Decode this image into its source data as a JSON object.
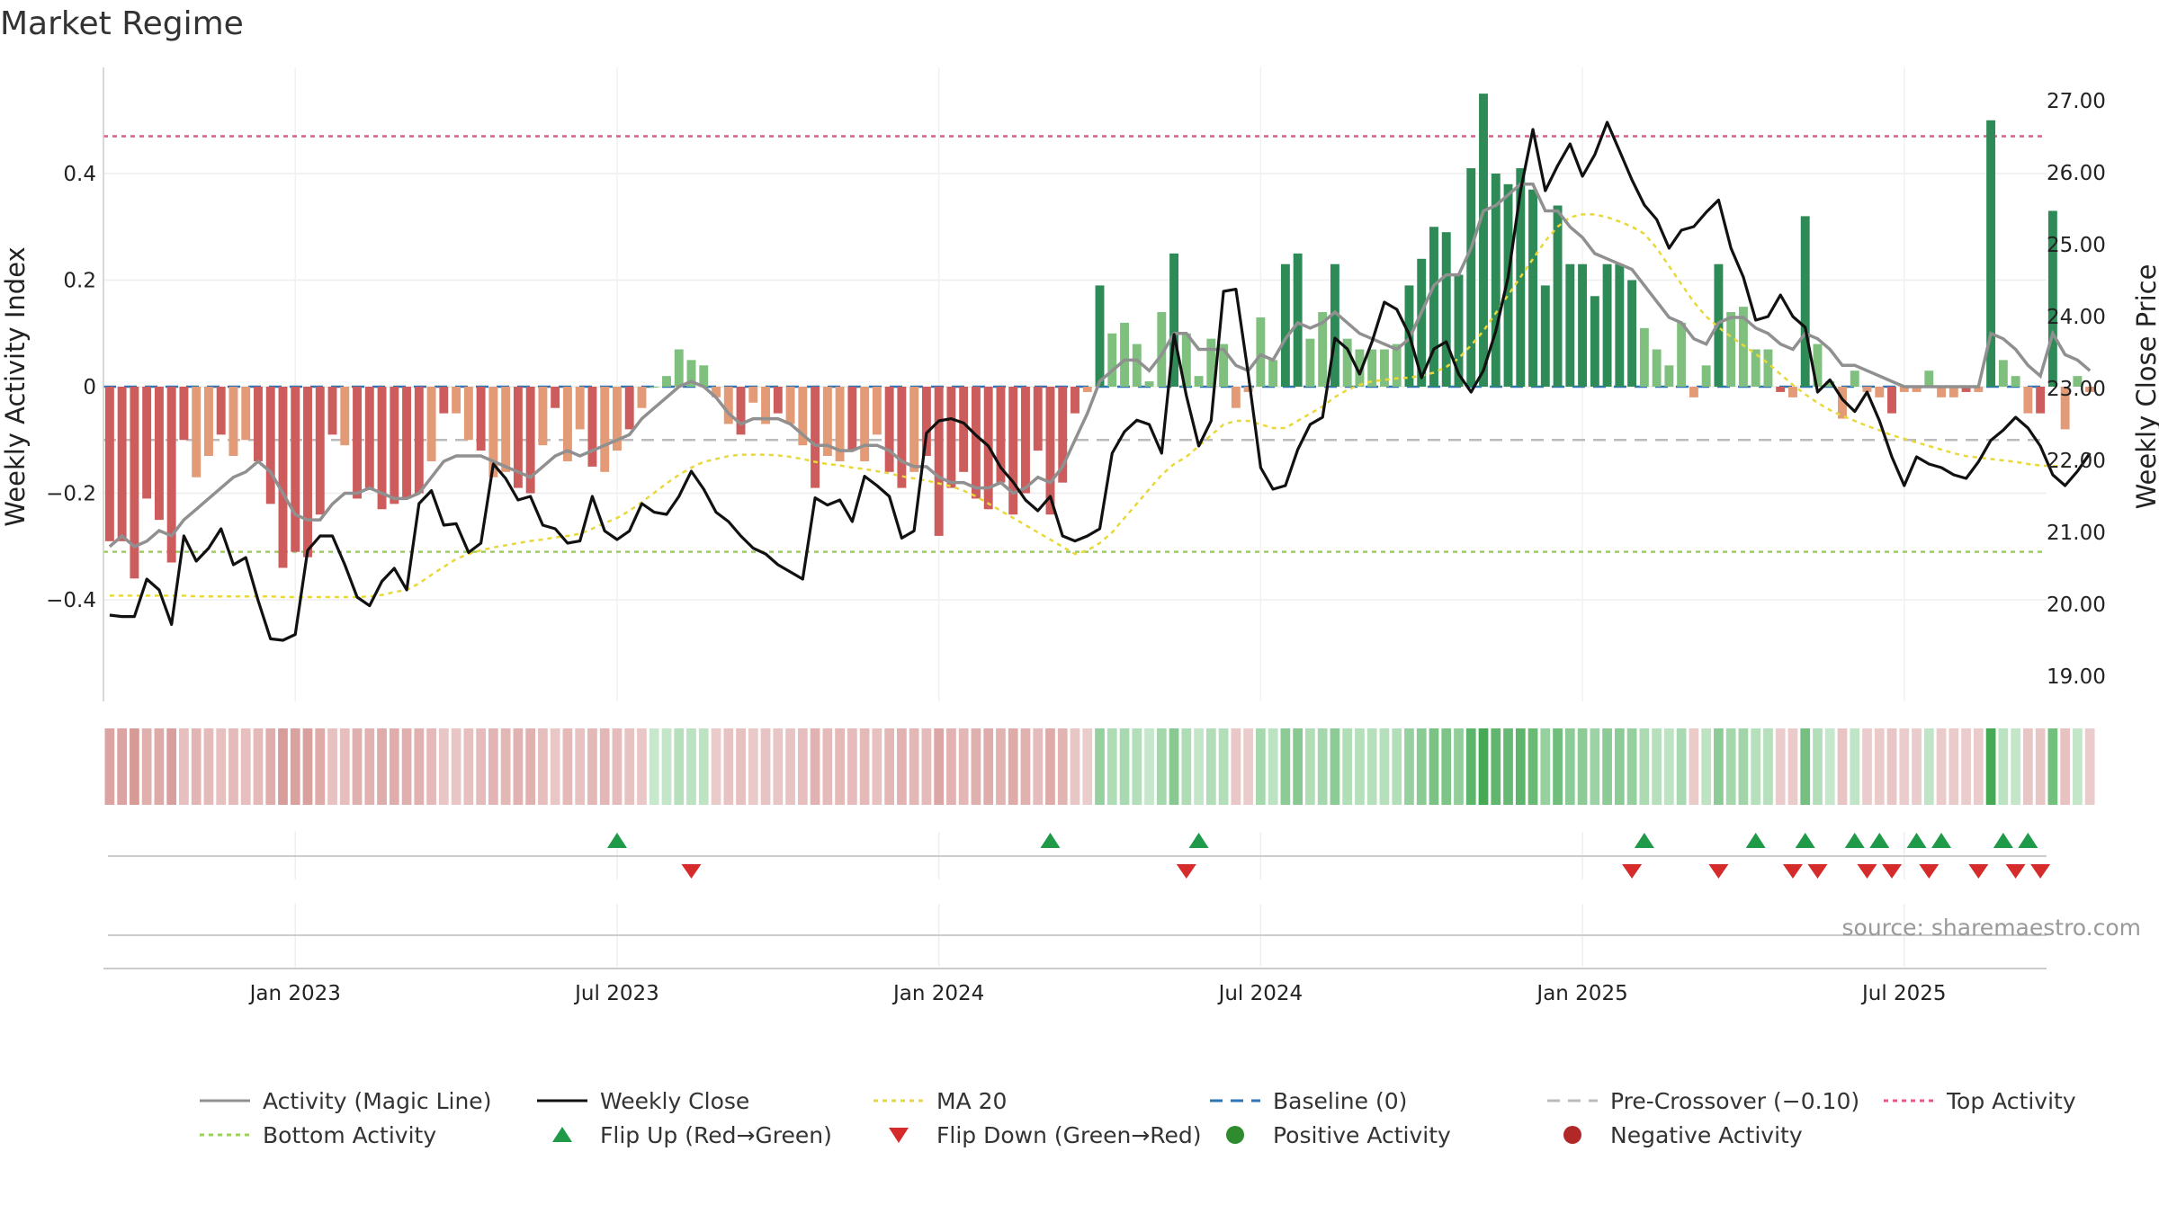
{
  "chart_data": {
    "type": "bar",
    "title": "Market Regime",
    "ylabel_left": "Weekly Activity Index",
    "ylabel_right": "Weekly Close Price",
    "source": "source: sharemaestro.com",
    "y_left_ticks": [
      {
        "value": 0.4,
        "label": "0.4"
      },
      {
        "value": 0.2,
        "label": "0.2"
      },
      {
        "value": 0,
        "label": "0"
      },
      {
        "value": -0.2,
        "label": "−0.2"
      },
      {
        "value": -0.4,
        "label": "−0.4"
      }
    ],
    "y_right_ticks": [
      "27.00",
      "26.00",
      "25.00",
      "24.00",
      "23.00",
      "22.00",
      "21.00",
      "20.00",
      "19.00"
    ],
    "y_left_range": [
      -0.59,
      0.59
    ],
    "y_right_range": [
      18.7,
      27.5
    ],
    "x_tick_labels": [
      {
        "week": 15,
        "label": "Jan 2023"
      },
      {
        "week": 41,
        "label": "Jul 2023"
      },
      {
        "week": 67,
        "label": "Jan 2024"
      },
      {
        "week": 93,
        "label": "Jul 2024"
      },
      {
        "week": 119,
        "label": "Jan 2025"
      },
      {
        "week": 145,
        "label": "Jul 2025"
      }
    ],
    "n_weeks": 157,
    "reference_lines": {
      "top_activity": 0.47,
      "bottom_activity": -0.31,
      "pre_crossover": -0.1,
      "baseline": 0
    },
    "activity_values": [
      -0.29,
      -0.29,
      -0.36,
      -0.21,
      -0.25,
      -0.33,
      -0.1,
      -0.17,
      -0.13,
      -0.09,
      -0.13,
      -0.1,
      -0.14,
      -0.22,
      -0.34,
      -0.31,
      -0.32,
      -0.24,
      -0.09,
      -0.11,
      -0.21,
      -0.19,
      -0.23,
      -0.22,
      -0.21,
      -0.2,
      -0.14,
      -0.05,
      -0.05,
      -0.1,
      -0.12,
      -0.17,
      -0.16,
      -0.19,
      -0.2,
      -0.11,
      -0.04,
      -0.14,
      -0.08,
      -0.15,
      -0.16,
      -0.12,
      -0.08,
      -0.04,
      0,
      0.02,
      0.07,
      0.05,
      0.04,
      -0.02,
      -0.07,
      -0.09,
      -0.03,
      -0.07,
      -0.05,
      -0.07,
      -0.11,
      -0.19,
      -0.13,
      -0.14,
      -0.12,
      -0.14,
      -0.09,
      -0.16,
      -0.19,
      -0.16,
      -0.13,
      -0.28,
      -0.19,
      -0.16,
      -0.21,
      -0.23,
      -0.18,
      -0.24,
      -0.2,
      -0.12,
      -0.24,
      -0.18,
      -0.05,
      -0.01,
      0.19,
      0.1,
      0.12,
      0.08,
      0.01,
      0.14,
      0.25,
      0.1,
      0.02,
      0.09,
      0.08,
      -0.04,
      -0.01,
      0.13,
      0.05,
      0.23,
      0.25,
      0.09,
      0.14,
      0.23,
      0.09,
      0.07,
      0.07,
      0.07,
      0.08,
      0.19,
      0.24,
      0.3,
      0.29,
      0.21,
      0.41,
      0.55,
      0.4,
      0.38,
      0.41,
      0.37,
      0.19,
      0.34,
      0.23,
      0.23,
      0.17,
      0.23,
      0.23,
      0.2,
      0.11,
      0.07,
      0.04,
      0.12,
      -0.02,
      0.04,
      0.23,
      0.14,
      0.15,
      0.07,
      0.07,
      -0.01,
      -0.02,
      0.32,
      0.08,
      0.01,
      -0.06,
      0.03,
      -0.01,
      -0.02,
      -0.05,
      -0.01,
      -0.01,
      0.03,
      -0.02,
      -0.02,
      -0.01,
      -0.01,
      0.5,
      0.05,
      0.02,
      -0.05,
      -0.05,
      0.33,
      -0.08,
      0.02,
      -0.01
    ],
    "weekly_close": [
      19.85,
      19.83,
      19.83,
      20.35,
      20.2,
      19.72,
      20.95,
      20.6,
      20.78,
      21.05,
      20.55,
      20.65,
      20.05,
      19.52,
      19.5,
      19.58,
      20.75,
      20.95,
      20.95,
      20.55,
      20.1,
      19.98,
      20.32,
      20.5,
      20.2,
      21.4,
      21.58,
      21.1,
      21.12,
      20.72,
      20.85,
      21.95,
      21.75,
      21.45,
      21.5,
      21.1,
      21.05,
      20.85,
      20.88,
      21.5,
      21.02,
      20.9,
      21.02,
      21.4,
      21.28,
      21.25,
      21.5,
      21.85,
      21.6,
      21.28,
      21.15,
      20.95,
      20.78,
      20.7,
      20.55,
      20.45,
      20.35,
      21.48,
      21.38,
      21.45,
      21.15,
      21.78,
      21.65,
      21.5,
      20.92,
      21.02,
      22.38,
      22.55,
      22.58,
      22.52,
      22.35,
      22.2,
      21.9,
      21.7,
      21.45,
      21.3,
      21.5,
      20.95,
      20.88,
      20.95,
      21.05,
      22.1,
      22.4,
      22.56,
      22.5,
      22.1,
      23.75,
      22.9,
      22.2,
      22.55,
      24.35,
      24.38,
      23.2,
      21.9,
      21.6,
      21.65,
      22.15,
      22.5,
      22.6,
      23.7,
      23.55,
      23.2,
      23.65,
      24.2,
      24.1,
      23.75,
      23.15,
      23.55,
      23.65,
      23.2,
      22.95,
      23.25,
      23.8,
      24.55,
      25.75,
      26.6,
      25.75,
      26.1,
      26.4,
      25.95,
      26.25,
      26.7,
      26.3,
      25.9,
      25.55,
      25.35,
      24.95,
      25.2,
      25.25,
      25.45,
      25.62,
      24.95,
      24.55,
      23.95,
      24.0,
      24.3,
      24.0,
      23.85,
      22.95,
      23.12,
      22.85,
      22.68,
      22.95,
      22.55,
      22.05,
      21.65,
      22.05,
      21.95,
      21.9,
      21.8,
      21.75,
      21.98,
      22.28,
      22.42,
      22.6,
      22.45,
      22.2,
      21.8,
      21.65,
      21.85,
      22.1
    ],
    "magic_line": [
      -0.3,
      -0.28,
      -0.3,
      -0.29,
      -0.27,
      -0.28,
      -0.25,
      -0.23,
      -0.21,
      -0.19,
      -0.17,
      -0.16,
      -0.14,
      -0.16,
      -0.2,
      -0.24,
      -0.25,
      -0.25,
      -0.22,
      -0.2,
      -0.2,
      -0.19,
      -0.2,
      -0.21,
      -0.21,
      -0.2,
      -0.17,
      -0.14,
      -0.13,
      -0.13,
      -0.13,
      -0.14,
      -0.15,
      -0.16,
      -0.17,
      -0.15,
      -0.13,
      -0.12,
      -0.13,
      -0.12,
      -0.11,
      -0.1,
      -0.09,
      -0.06,
      -0.04,
      -0.02,
      0.0,
      0.01,
      0.0,
      -0.02,
      -0.05,
      -0.07,
      -0.06,
      -0.06,
      -0.06,
      -0.07,
      -0.09,
      -0.11,
      -0.11,
      -0.12,
      -0.12,
      -0.11,
      -0.11,
      -0.12,
      -0.14,
      -0.15,
      -0.15,
      -0.17,
      -0.18,
      -0.18,
      -0.19,
      -0.19,
      -0.18,
      -0.2,
      -0.19,
      -0.17,
      -0.18,
      -0.15,
      -0.1,
      -0.05,
      0.01,
      0.03,
      0.05,
      0.05,
      0.03,
      0.06,
      0.1,
      0.1,
      0.07,
      0.07,
      0.07,
      0.04,
      0.03,
      0.06,
      0.05,
      0.09,
      0.12,
      0.11,
      0.12,
      0.14,
      0.12,
      0.1,
      0.09,
      0.08,
      0.07,
      0.09,
      0.14,
      0.19,
      0.21,
      0.21,
      0.26,
      0.33,
      0.34,
      0.36,
      0.38,
      0.38,
      0.33,
      0.33,
      0.3,
      0.28,
      0.25,
      0.24,
      0.23,
      0.22,
      0.19,
      0.16,
      0.13,
      0.12,
      0.09,
      0.08,
      0.12,
      0.13,
      0.13,
      0.11,
      0.1,
      0.08,
      0.07,
      0.1,
      0.09,
      0.07,
      0.04,
      0.04,
      0.03,
      0.02,
      0.01,
      0.0,
      0.0,
      0.0,
      -0.0,
      -0.0,
      0.0,
      0.0,
      0.1,
      0.09,
      0.07,
      0.04,
      0.02,
      0.1,
      0.06,
      0.05,
      0.03
    ],
    "ma20": [
      20.12,
      20.12,
      20.12,
      20.12,
      20.12,
      20.12,
      20.12,
      20.11,
      20.11,
      20.11,
      20.11,
      20.11,
      20.11,
      20.11,
      20.1,
      20.1,
      20.1,
      20.1,
      20.1,
      20.1,
      20.1,
      20.11,
      20.13,
      20.17,
      20.2,
      20.29,
      20.41,
      20.52,
      20.63,
      20.7,
      20.75,
      20.79,
      20.82,
      20.85,
      20.88,
      20.9,
      20.93,
      20.95,
      20.98,
      21.05,
      21.13,
      21.2,
      21.3,
      21.42,
      21.55,
      21.68,
      21.8,
      21.9,
      21.98,
      22.02,
      22.06,
      22.08,
      22.08,
      22.08,
      22.07,
      22.05,
      22.02,
      21.98,
      21.95,
      21.93,
      21.9,
      21.88,
      21.85,
      21.82,
      21.78,
      21.75,
      21.72,
      21.68,
      21.64,
      21.58,
      21.5,
      21.4,
      21.3,
      21.2,
      21.1,
      21.0,
      20.9,
      20.8,
      20.7,
      20.75,
      20.85,
      21.0,
      21.2,
      21.4,
      21.6,
      21.8,
      21.95,
      22.05,
      22.2,
      22.35,
      22.5,
      22.55,
      22.55,
      22.5,
      22.45,
      22.45,
      22.55,
      22.65,
      22.75,
      22.88,
      22.98,
      23.05,
      23.1,
      23.12,
      23.14,
      23.15,
      23.18,
      23.22,
      23.3,
      23.42,
      23.6,
      23.8,
      24.05,
      24.3,
      24.55,
      24.8,
      25.05,
      25.25,
      25.38,
      25.42,
      25.42,
      25.38,
      25.32,
      25.25,
      25.15,
      24.95,
      24.7,
      24.45,
      24.2,
      24.0,
      23.85,
      23.72,
      23.6,
      23.48,
      23.35,
      23.2,
      23.05,
      22.92,
      22.8,
      22.7,
      22.62,
      22.55,
      22.48,
      22.42,
      22.35,
      22.3,
      22.25,
      22.2,
      22.15,
      22.1,
      22.06,
      22.04,
      22.02,
      22.0,
      21.98,
      21.95,
      21.93,
      21.92,
      21.92
    ],
    "flip_up_weeks": [
      41,
      76,
      88,
      124,
      133,
      137,
      141,
      143,
      146,
      148,
      153,
      155
    ],
    "flip_down_weeks": [
      47,
      87,
      123,
      130,
      136,
      138,
      142,
      144,
      147,
      151,
      154,
      156
    ],
    "legend": [
      {
        "label": "Activity (Magic Line)",
        "kind": "line",
        "color": "#909090",
        "dash": ""
      },
      {
        "label": "Weekly Close",
        "kind": "line",
        "color": "#111111",
        "dash": ""
      },
      {
        "label": "MA 20",
        "kind": "line",
        "color": "#e8d83a",
        "dash": "5,5"
      },
      {
        "label": "Baseline (0)",
        "kind": "line",
        "color": "#2f74b5",
        "dash": "14,9"
      },
      {
        "label": "Pre-Crossover (−0.10)",
        "kind": "line",
        "color": "#bbbbbb",
        "dash": "14,9"
      },
      {
        "label": "Top Activity",
        "kind": "line",
        "color": "#e05a8a",
        "dash": "5,5"
      },
      {
        "label": "Bottom Activity",
        "kind": "line",
        "color": "#9ccf5c",
        "dash": "5,5"
      },
      {
        "label": "Flip Up (Red→Green)",
        "kind": "tri-up",
        "color": "#1e9a48",
        "dash": ""
      },
      {
        "label": "Flip Down (Green→Red)",
        "kind": "tri-down",
        "color": "#d62b2b",
        "dash": ""
      },
      {
        "label": "Positive Activity",
        "kind": "dot",
        "color": "#2e8b2e",
        "dash": ""
      },
      {
        "label": "Negative Activity",
        "kind": "dot",
        "color": "#b02828",
        "dash": ""
      }
    ]
  }
}
